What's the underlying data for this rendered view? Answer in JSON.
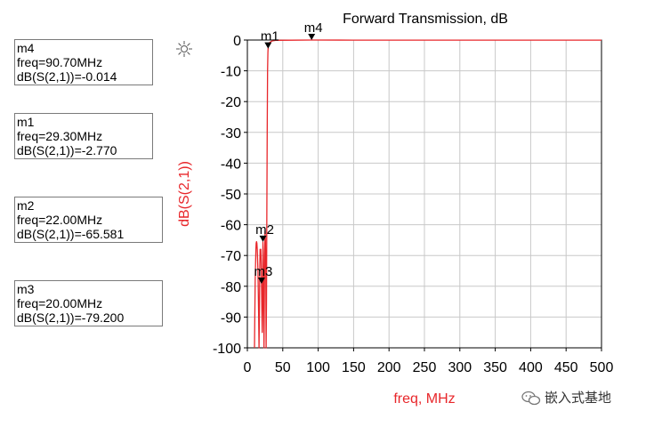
{
  "chart_data": {
    "type": "line",
    "title": "Forward Transmission, dB",
    "xlabel": "freq, MHz",
    "ylabel": "dB(S(2,1))",
    "xlim": [
      0,
      500
    ],
    "ylim": [
      -100,
      0
    ],
    "x_ticks": [
      0,
      50,
      100,
      150,
      200,
      250,
      300,
      350,
      400,
      450,
      500
    ],
    "y_ticks": [
      0,
      -10,
      -20,
      -30,
      -40,
      -50,
      -60,
      -70,
      -80,
      -90,
      -100
    ],
    "grid": true,
    "line_color": "#e8262a",
    "series": [
      {
        "name": "",
        "x": [
          10,
          11,
          12,
          12.5,
          13,
          13.5,
          14,
          15,
          16,
          16.5,
          17,
          17.5,
          18,
          19,
          19.5,
          20,
          20.5,
          21,
          21.5,
          22,
          22.5,
          23,
          23.5,
          24,
          24.5,
          25,
          25.5,
          26,
          26.5,
          27,
          27.5,
          28,
          28.5,
          29,
          29.3,
          30,
          35,
          40,
          60,
          90.7,
          150,
          250,
          350,
          450,
          500
        ],
        "y": [
          -100,
          -78,
          -68,
          -66,
          -65.5,
          -66,
          -68,
          -75,
          -90,
          -100,
          -90,
          -75,
          -68,
          -68,
          -72,
          -79.2,
          -88,
          -95,
          -88,
          -65.6,
          -70,
          -82,
          -100,
          -85,
          -68,
          -62,
          -65,
          -75,
          -100,
          -85,
          -55,
          -30,
          -10,
          -4,
          -2.77,
          -1,
          -0.3,
          -0.1,
          -0.05,
          -0.014,
          -0.02,
          -0.02,
          -0.02,
          -0.02,
          -0.02
        ]
      }
    ],
    "markers": [
      {
        "id": "m4",
        "freq_label": "freq=90.70MHz",
        "value_label": "dB(S(2,1))=-0.014",
        "x": 90.7,
        "y": -0.014
      },
      {
        "id": "m1",
        "freq_label": "freq=29.30MHz",
        "value_label": "dB(S(2,1))=-2.770",
        "x": 29.3,
        "y": -2.77
      },
      {
        "id": "m2",
        "freq_label": "freq=22.00MHz",
        "value_label": "dB(S(2,1))=-65.581",
        "x": 22.0,
        "y": -65.581
      },
      {
        "id": "m3",
        "freq_label": "freq=20.00MHz",
        "value_label": "dB(S(2,1))=-79.200",
        "x": 20.0,
        "y": -79.2
      }
    ]
  },
  "watermark": {
    "icon": "wechat-icon",
    "text": "嵌入式基地"
  }
}
